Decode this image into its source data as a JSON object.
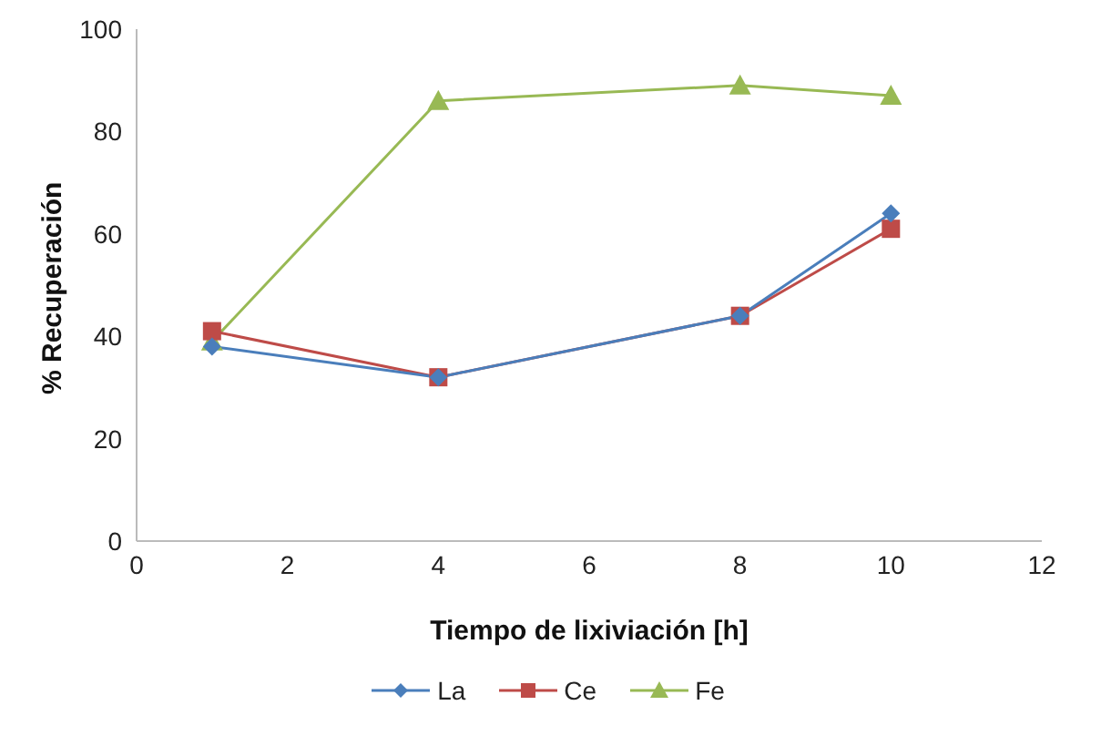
{
  "chart_data": {
    "type": "line",
    "xlabel": "Tiempo de lixiviación [h]",
    "ylabel": "% Recuperación",
    "x": [
      1,
      4,
      8,
      10
    ],
    "series": [
      {
        "name": "La",
        "color": "#4a7ebb",
        "values": [
          38,
          32,
          44,
          64
        ],
        "marker": "diamond"
      },
      {
        "name": "Ce",
        "color": "#be4b48",
        "values": [
          41,
          32,
          44,
          61
        ],
        "marker": "square"
      },
      {
        "name": "Fe",
        "color": "#98b954",
        "values": [
          39,
          86,
          89,
          87
        ],
        "marker": "triangle"
      }
    ],
    "xlim": [
      0,
      12
    ],
    "xticks": [
      0,
      2,
      4,
      6,
      8,
      10,
      12
    ],
    "ylim": [
      0,
      100
    ],
    "yticks": [
      0,
      20,
      40,
      60,
      80,
      100
    ],
    "grid": false,
    "legend": "bottom",
    "line_style": "solid"
  }
}
